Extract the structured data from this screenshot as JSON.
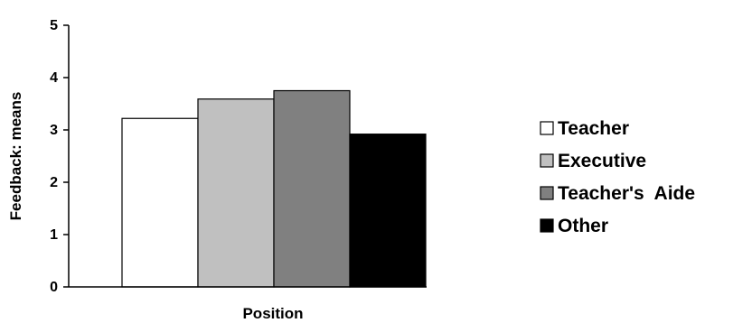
{
  "chart_data": {
    "type": "bar",
    "title": "",
    "xlabel": "Position",
    "ylabel": "Feedback: means",
    "ylim": [
      0,
      5
    ],
    "yticks": [
      0,
      1,
      2,
      3,
      4,
      5
    ],
    "grid": false,
    "legend_position": "right",
    "series": [
      {
        "name": "Teacher",
        "values": [
          3.22
        ],
        "color": "#ffffff"
      },
      {
        "name": "Executive",
        "values": [
          3.59
        ],
        "color": "#c0c0c0"
      },
      {
        "name": "Teacher's  Aide",
        "values": [
          3.75
        ],
        "color": "#808080"
      },
      {
        "name": "Other",
        "values": [
          2.92
        ],
        "color": "#000000"
      }
    ]
  }
}
